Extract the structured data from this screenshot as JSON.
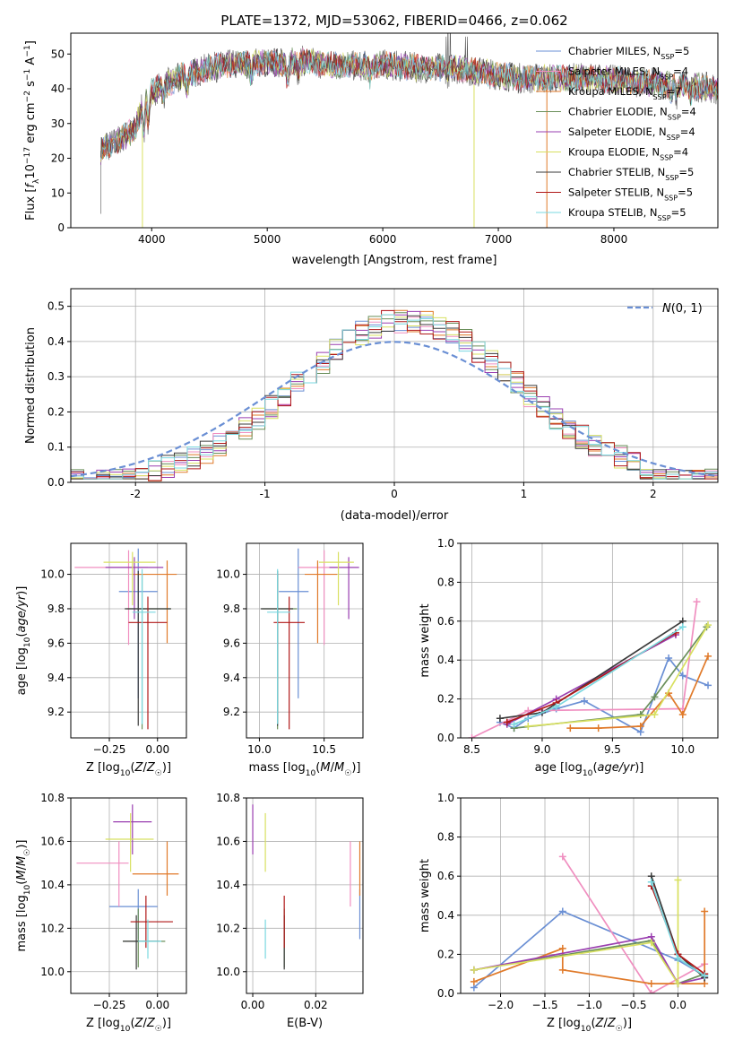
{
  "chart_data": [
    {
      "type": "line",
      "title": "PLATE=1372, MJD=53062, FIBERID=0466, z=0.062",
      "xlabel": "wavelength [Angstrom, rest frame]",
      "ylabel": "Flux [f_λ 10^-17 erg cm^-2 s^-1 A^-1]",
      "xlim": [
        3300,
        8900
      ],
      "ylim": [
        0,
        56
      ],
      "xticks": [
        4000,
        5000,
        6000,
        7000,
        8000
      ],
      "yticks": [
        0,
        10,
        20,
        30,
        40,
        50
      ],
      "legend_position": "top-right",
      "data_color": "#555555",
      "series": [
        {
          "name": "Chabrier MILES, N",
          "sub": "SSP",
          "suffix": "=5",
          "color": "#6a8fd4"
        },
        {
          "name": "Salpeter MILES, N",
          "sub": "SSP",
          "suffix": "=4",
          "color": "#f08fc0"
        },
        {
          "name": "Kroupa MILES, N",
          "sub": "SSP",
          "suffix": "=7",
          "color": "#e07a2a"
        },
        {
          "name": "Chabrier ELODIE, N",
          "sub": "SSP",
          "suffix": "=4",
          "color": "#6a8f5a"
        },
        {
          "name": "Salpeter ELODIE, N",
          "sub": "SSP",
          "suffix": "=4",
          "color": "#9a3fb0"
        },
        {
          "name": "Kroupa ELODIE, N",
          "sub": "SSP",
          "suffix": "=4",
          "color": "#d8e060"
        },
        {
          "name": "Chabrier STELIB, N",
          "sub": "SSP",
          "suffix": "=5",
          "color": "#3a3a3a"
        },
        {
          "name": "Salpeter STELIB, N",
          "sub": "SSP",
          "suffix": "=5",
          "color": "#b01818"
        },
        {
          "name": "Kroupa STELIB, N",
          "sub": "SSP",
          "suffix": "=5",
          "color": "#7ad8e0"
        }
      ],
      "continuum": [
        [
          3550,
          22
        ],
        [
          3700,
          25
        ],
        [
          3850,
          28
        ],
        [
          3950,
          38
        ],
        [
          4100,
          41
        ],
        [
          4300,
          44
        ],
        [
          4500,
          46
        ],
        [
          4700,
          47
        ],
        [
          4900,
          47.5
        ],
        [
          5100,
          47.5
        ],
        [
          5300,
          48
        ],
        [
          5500,
          47
        ],
        [
          5800,
          46.5
        ],
        [
          6000,
          47
        ],
        [
          6300,
          46
        ],
        [
          6600,
          46
        ],
        [
          6800,
          45
        ],
        [
          7000,
          44
        ],
        [
          7200,
          43
        ],
        [
          7500,
          43
        ],
        [
          7800,
          43
        ],
        [
          8200,
          42
        ],
        [
          8600,
          41
        ],
        [
          8900,
          40
        ]
      ],
      "absorption_dips": [
        [
          3934,
          15
        ],
        [
          3969,
          12
        ],
        [
          4101,
          6
        ],
        [
          4304,
          8
        ],
        [
          4861,
          6
        ],
        [
          5175,
          10
        ],
        [
          5270,
          5
        ],
        [
          5893,
          6
        ],
        [
          6563,
          3
        ],
        [
          8498,
          5
        ],
        [
          8542,
          6
        ],
        [
          8662,
          5
        ]
      ],
      "emission_spikes": [
        [
          6563,
          56
        ],
        [
          6583,
          56
        ],
        [
          6548,
          50
        ],
        [
          6717,
          50
        ],
        [
          6731,
          50
        ]
      ],
      "gap_lines": [
        [
          3560,
          4
        ],
        [
          3920,
          0
        ],
        [
          6790,
          0
        ],
        [
          7420,
          0
        ]
      ]
    },
    {
      "type": "area",
      "title": "",
      "xlabel": "(data-model)/error",
      "ylabel": "Normed distribution",
      "xlim": [
        -2.5,
        2.5
      ],
      "ylim": [
        0,
        0.55
      ],
      "xticks": [
        -2,
        -1,
        0,
        1,
        2
      ],
      "yticks": [
        0.0,
        0.1,
        0.2,
        0.3,
        0.4,
        0.5
      ],
      "legend_position": "top-right",
      "reference": {
        "name": "N(0,1)",
        "color": "#6a8fd4",
        "mean": 0,
        "sigma": 1
      },
      "bin_width": 0.1,
      "bin_start": -2.5,
      "base_shape": {
        "mean": 0.1,
        "sigma": 0.85,
        "amplitude": 0.46
      }
    },
    {
      "type": "scatter",
      "title": "",
      "xlabel": "Z [log10(Z/Z☉)]",
      "ylabel": "age [log10(age/yr)]",
      "xlim": [
        -0.45,
        0.15
      ],
      "ylim": [
        9.05,
        10.18
      ],
      "xticks": [
        -0.25,
        0.0
      ],
      "yticks": [
        9.2,
        9.4,
        9.6,
        9.8,
        10.0
      ],
      "points": [
        {
          "x": -0.1,
          "xerr": [
            0.1,
            0.1
          ],
          "y": 9.9,
          "yerr": [
            0.62,
            0.25
          ],
          "color": "#6a8fd4"
        },
        {
          "x": -0.15,
          "xerr": [
            0.28,
            0.1
          ],
          "y": 10.04,
          "yerr": [
            0.45,
            0.1
          ],
          "color": "#f08fc0"
        },
        {
          "x": 0.05,
          "xerr": [
            0.18,
            0.05
          ],
          "y": 10.0,
          "yerr": [
            0.4,
            0.08
          ],
          "color": "#e07a2a"
        },
        {
          "x": -0.08,
          "xerr": [
            0.08,
            0.15
          ],
          "y": 9.8,
          "yerr": [
            0.7,
            0.2
          ],
          "color": "#6a8f5a"
        },
        {
          "x": -0.12,
          "xerr": [
            0.15,
            0.15
          ],
          "y": 10.04,
          "yerr": [
            0.3,
            0.06
          ],
          "color": "#9a3fb0"
        },
        {
          "x": -0.13,
          "xerr": [
            0.15,
            0.12
          ],
          "y": 10.07,
          "yerr": [
            0.25,
            0.06
          ],
          "color": "#d8e060"
        },
        {
          "x": -0.1,
          "xerr": [
            0.07,
            0.17
          ],
          "y": 9.8,
          "yerr": [
            0.68,
            0.22
          ],
          "color": "#3a3a3a"
        },
        {
          "x": -0.05,
          "xerr": [
            0.1,
            0.1
          ],
          "y": 9.72,
          "yerr": [
            0.62,
            0.15
          ],
          "color": "#b01818"
        },
        {
          "x": -0.08,
          "xerr": [
            0.05,
            0.07
          ],
          "y": 9.78,
          "yerr": [
            0.65,
            0.25
          ],
          "color": "#7ad8e0"
        }
      ]
    },
    {
      "type": "scatter",
      "title": "",
      "xlabel": "mass [log10(M/M☉)]",
      "ylabel": "",
      "xlim": [
        9.9,
        10.8
      ],
      "ylim": [
        9.05,
        10.18
      ],
      "xticks": [
        10.0,
        10.5
      ],
      "yticks": [
        9.2,
        9.4,
        9.6,
        9.8,
        10.0
      ],
      "points": [
        {
          "x": 10.3,
          "xerr": [
            0.15,
            0.08
          ],
          "y": 9.9,
          "yerr": [
            0.62,
            0.25
          ],
          "color": "#6a8fd4"
        },
        {
          "x": 10.5,
          "xerr": [
            0.2,
            0.1
          ],
          "y": 10.04,
          "yerr": [
            0.45,
            0.1
          ],
          "color": "#f08fc0"
        },
        {
          "x": 10.45,
          "xerr": [
            0.1,
            0.15
          ],
          "y": 10.0,
          "yerr": [
            0.4,
            0.08
          ],
          "color": "#e07a2a"
        },
        {
          "x": 10.14,
          "xerr": [
            0.12,
            0.15
          ],
          "y": 9.8,
          "yerr": [
            0.7,
            0.2
          ],
          "color": "#6a8f5a"
        },
        {
          "x": 10.69,
          "xerr": [
            0.15,
            0.08
          ],
          "y": 10.04,
          "yerr": [
            0.3,
            0.06
          ],
          "color": "#9a3fb0"
        },
        {
          "x": 10.61,
          "xerr": [
            0.15,
            0.12
          ],
          "y": 10.07,
          "yerr": [
            0.25,
            0.06
          ],
          "color": "#d8e060"
        },
        {
          "x": 10.14,
          "xerr": [
            0.13,
            0.12
          ],
          "y": 9.8,
          "yerr": [
            0.68,
            0.22
          ],
          "color": "#3a3a3a"
        },
        {
          "x": 10.23,
          "xerr": [
            0.12,
            0.12
          ],
          "y": 9.72,
          "yerr": [
            0.62,
            0.15
          ],
          "color": "#b01818"
        },
        {
          "x": 10.14,
          "xerr": [
            0.08,
            0.1
          ],
          "y": 9.78,
          "yerr": [
            0.65,
            0.25
          ],
          "color": "#7ad8e0"
        }
      ]
    },
    {
      "type": "line",
      "title": "",
      "xlabel": "age [log10(age/yr)]",
      "ylabel": "mass weight",
      "xlim": [
        8.42,
        10.25
      ],
      "ylim": [
        0,
        1.0
      ],
      "xticks": [
        8.5,
        9.0,
        9.5,
        10.0
      ],
      "yticks": [
        0.0,
        0.2,
        0.4,
        0.6,
        0.8,
        1.0
      ],
      "series": [
        {
          "color": "#6a8fd4",
          "x": [
            8.7,
            8.8,
            8.9,
            9.1,
            9.3,
            9.7,
            9.9,
            10.0,
            10.18
          ],
          "y": [
            0.08,
            0.05,
            0.1,
            0.15,
            0.19,
            0.03,
            0.41,
            0.32,
            0.27
          ]
        },
        {
          "color": "#f08fc0",
          "x": [
            8.5,
            8.9,
            10.0,
            10.1
          ],
          "y": [
            0.0,
            0.14,
            0.15,
            0.7
          ]
        },
        {
          "color": "#e07a2a",
          "x": [
            9.2,
            9.4,
            9.7,
            9.9,
            10.0,
            10.18
          ],
          "y": [
            0.05,
            0.05,
            0.06,
            0.23,
            0.12,
            0.42
          ]
        },
        {
          "color": "#6a8f5a",
          "x": [
            8.8,
            9.7,
            9.8,
            10.17
          ],
          "y": [
            0.05,
            0.12,
            0.21,
            0.57
          ]
        },
        {
          "color": "#9a3fb0",
          "x": [
            8.75,
            9.1,
            9.95
          ],
          "y": [
            0.07,
            0.2,
            0.53
          ]
        },
        {
          "color": "#d8e060",
          "x": [
            8.9,
            9.8,
            10.18
          ],
          "y": [
            0.06,
            0.12,
            0.58
          ]
        },
        {
          "color": "#3a3a3a",
          "x": [
            8.7,
            9.0,
            10.0
          ],
          "y": [
            0.1,
            0.13,
            0.6
          ]
        },
        {
          "color": "#b01818",
          "x": [
            8.75,
            9.1,
            9.95
          ],
          "y": [
            0.08,
            0.18,
            0.54
          ]
        },
        {
          "color": "#7ad8e0",
          "x": [
            8.8,
            9.1,
            10.0
          ],
          "y": [
            0.07,
            0.16,
            0.57
          ]
        }
      ]
    },
    {
      "type": "scatter",
      "title": "",
      "xlabel": "Z [log10(Z/Z☉)]",
      "ylabel": "mass [log10(M/M☉)]",
      "xlim": [
        -0.45,
        0.15
      ],
      "ylim": [
        9.9,
        10.8
      ],
      "xticks": [
        -0.25,
        0.0
      ],
      "yticks": [
        10.0,
        10.2,
        10.4,
        10.6,
        10.8
      ],
      "points": [
        {
          "x": -0.1,
          "xerr": [
            0.15,
            0.1
          ],
          "y": 10.3,
          "yerr": [
            0.15,
            0.08
          ],
          "color": "#6a8fd4"
        },
        {
          "x": -0.2,
          "xerr": [
            0.22,
            0.05
          ],
          "y": 10.5,
          "yerr": [
            0.2,
            0.1
          ],
          "color": "#f08fc0"
        },
        {
          "x": 0.05,
          "xerr": [
            0.18,
            0.06
          ],
          "y": 10.45,
          "yerr": [
            0.1,
            0.15
          ],
          "color": "#e07a2a"
        },
        {
          "x": -0.1,
          "xerr": [
            0.08,
            0.14
          ],
          "y": 10.14,
          "yerr": [
            0.12,
            0.15
          ],
          "color": "#6a8f5a"
        },
        {
          "x": -0.13,
          "xerr": [
            0.1,
            0.1
          ],
          "y": 10.69,
          "yerr": [
            0.15,
            0.08
          ],
          "color": "#9a3fb0"
        },
        {
          "x": -0.14,
          "xerr": [
            0.13,
            0.12
          ],
          "y": 10.61,
          "yerr": [
            0.15,
            0.12
          ],
          "color": "#d8e060"
        },
        {
          "x": -0.11,
          "xerr": [
            0.07,
            0.12
          ],
          "y": 10.14,
          "yerr": [
            0.13,
            0.12
          ],
          "color": "#3a3a3a"
        },
        {
          "x": -0.06,
          "xerr": [
            0.08,
            0.14
          ],
          "y": 10.23,
          "yerr": [
            0.12,
            0.12
          ],
          "color": "#b01818"
        },
        {
          "x": -0.05,
          "xerr": [
            0.05,
            0.07
          ],
          "y": 10.14,
          "yerr": [
            0.08,
            0.1
          ],
          "color": "#7ad8e0"
        }
      ]
    },
    {
      "type": "scatter",
      "title": "",
      "xlabel": "E(B-V)",
      "ylabel": "",
      "xlim": [
        -0.002,
        0.035
      ],
      "ylim": [
        9.9,
        10.8
      ],
      "xticks": [
        0.0,
        0.02
      ],
      "yticks": [
        10.0,
        10.2,
        10.4,
        10.6,
        10.8
      ],
      "points": [
        {
          "x": 0.034,
          "yerr": [
            0.15,
            0.08
          ],
          "y": 10.3,
          "color": "#6a8fd4"
        },
        {
          "x": 0.031,
          "yerr": [
            0.2,
            0.1
          ],
          "y": 10.5,
          "color": "#f08fc0"
        },
        {
          "x": 0.034,
          "yerr": [
            0.1,
            0.15
          ],
          "y": 10.45,
          "color": "#e07a2a"
        },
        {
          "x": 0.01,
          "yerr": [
            0.12,
            0.15
          ],
          "y": 10.14,
          "color": "#6a8f5a"
        },
        {
          "x": 0.0,
          "yerr": [
            0.15,
            0.08
          ],
          "y": 10.69,
          "color": "#9a3fb0"
        },
        {
          "x": 0.004,
          "yerr": [
            0.15,
            0.12
          ],
          "y": 10.61,
          "color": "#d8e060"
        },
        {
          "x": 0.01,
          "yerr": [
            0.13,
            0.12
          ],
          "y": 10.14,
          "color": "#3a3a3a"
        },
        {
          "x": 0.01,
          "yerr": [
            0.12,
            0.12
          ],
          "y": 10.23,
          "color": "#b01818"
        },
        {
          "x": 0.004,
          "yerr": [
            0.08,
            0.1
          ],
          "y": 10.14,
          "color": "#7ad8e0"
        }
      ]
    },
    {
      "type": "line",
      "title": "",
      "xlabel": "Z [log10(Z/Z☉)]",
      "ylabel": "mass weight",
      "xlim": [
        -2.45,
        0.45
      ],
      "ylim": [
        0,
        1.0
      ],
      "xticks": [
        -2.0,
        -1.5,
        -1.0,
        -0.5,
        0.0
      ],
      "yticks": [
        0.0,
        0.2,
        0.4,
        0.6,
        0.8,
        1.0
      ],
      "series": [
        {
          "color": "#6a8fd4",
          "x": [
            -2.3,
            -1.3,
            0.0,
            0.3
          ],
          "y": [
            0.03,
            0.42,
            0.17,
            0.09
          ]
        },
        {
          "color": "#f08fc0",
          "x": [
            -1.3,
            -0.3,
            0.3
          ],
          "y": [
            0.7,
            0.0,
            0.15
          ]
        },
        {
          "color": "#e07a2a",
          "x": [
            -2.3,
            -1.3,
            -1.3,
            -0.3,
            0.0,
            0.3,
            0.3
          ],
          "y": [
            0.06,
            0.23,
            0.12,
            0.05,
            0.05,
            0.05,
            0.42
          ]
        },
        {
          "color": "#6a8f5a",
          "x": [
            -2.3,
            -0.3,
            0.0,
            0.3
          ],
          "y": [
            0.12,
            0.27,
            0.05,
            0.1
          ]
        },
        {
          "color": "#9a3fb0",
          "x": [
            -2.3,
            -0.3,
            0.0,
            0.3
          ],
          "y": [
            0.12,
            0.29,
            0.05,
            0.08
          ]
        },
        {
          "color": "#d8e060",
          "x": [
            -2.3,
            -0.3,
            0.0,
            0.0
          ],
          "y": [
            0.12,
            0.26,
            0.05,
            0.58
          ]
        },
        {
          "color": "#3a3a3a",
          "x": [
            -0.3,
            0.0,
            0.3
          ],
          "y": [
            0.6,
            0.2,
            0.08
          ]
        },
        {
          "color": "#b01818",
          "x": [
            -0.3,
            0.0,
            0.3
          ],
          "y": [
            0.55,
            0.2,
            0.1
          ]
        },
        {
          "color": "#7ad8e0",
          "x": [
            -0.3,
            0.0,
            0.3
          ],
          "y": [
            0.57,
            0.18,
            0.09
          ]
        }
      ]
    }
  ]
}
